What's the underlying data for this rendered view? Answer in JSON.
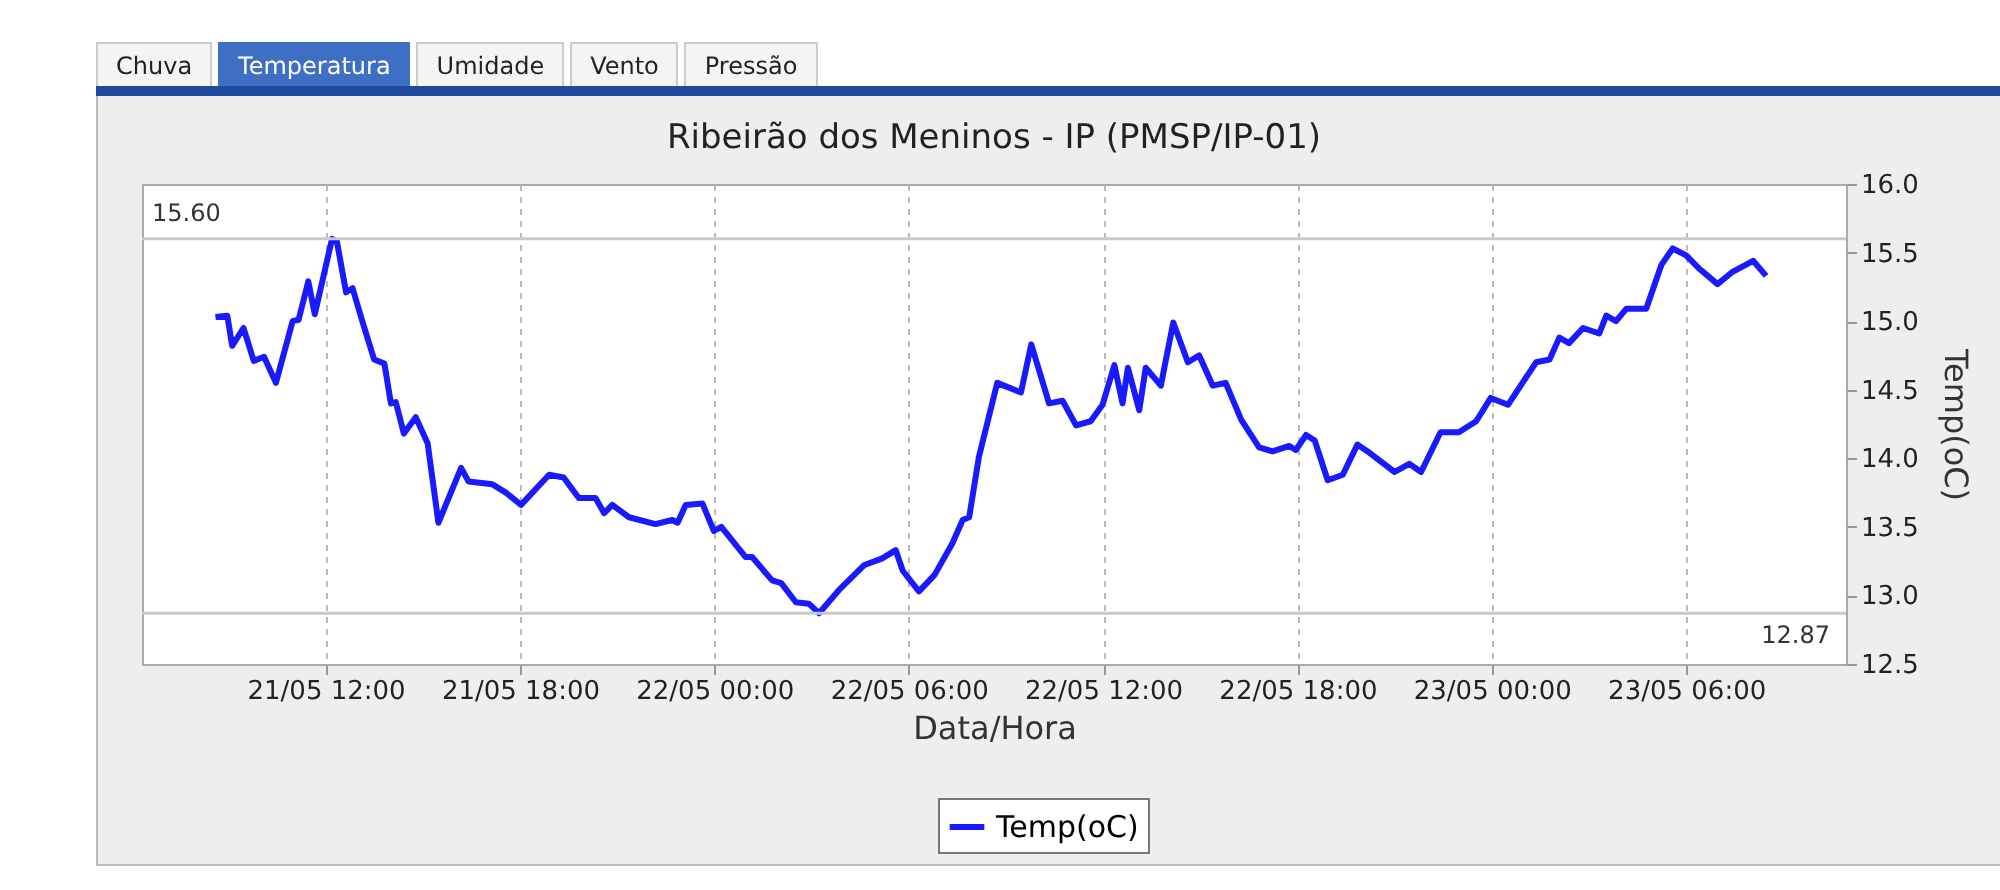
{
  "chart_data": {
    "type": "line",
    "title": "Ribeirão dos Meninos - IP (PMSP/IP-01)",
    "xlabel": "Data/Hora",
    "ylabel": "Temp(oC)",
    "annotations": [
      "Chuva",
      "Temperatura",
      "Umidade",
      "Vento",
      "Pressão"
    ],
    "xlim": [
      "--05-21T06:20",
      "--05-23T10:56"
    ],
    "xticks": [
      {
        "value": "--05-21T12:00",
        "label": "21/05 12:00"
      },
      {
        "value": "--05-21T18:00",
        "label": "21/05 18:00"
      },
      {
        "value": "--05-22T00:00",
        "label": "22/05 00:00"
      },
      {
        "value": "--05-22T06:00",
        "label": "22/05 06:00"
      },
      {
        "value": "--05-22T12:00",
        "label": "22/05 12:00"
      },
      {
        "value": "--05-22T18:00",
        "label": "22/05 18:00"
      },
      {
        "value": "--05-23T00:00",
        "label": "23/05 00:00"
      },
      {
        "value": "--05-23T06:00",
        "label": "23/05 06:00"
      }
    ],
    "ylim": [
      12.5,
      16.0
    ],
    "yticks": [
      {
        "value": 12.5,
        "label": "12.5"
      },
      {
        "value": 13,
        "label": "13.0"
      },
      {
        "value": 13.5,
        "label": "13.5"
      },
      {
        "value": 14,
        "label": "14.0"
      },
      {
        "value": 14.5,
        "label": "14.5"
      },
      {
        "value": 15,
        "label": "15.0"
      },
      {
        "value": 15.5,
        "label": "15.5"
      },
      {
        "value": 16,
        "label": "16.0"
      }
    ],
    "grid": "x",
    "legend": "bottom",
    "ref_lines": [
      {
        "axis": "y",
        "value": 15.6,
        "label": "15.60",
        "color": "#c8c8c8"
      },
      {
        "axis": "y",
        "value": 12.87,
        "label": "12.87",
        "color": "#c8c8c8"
      }
    ],
    "x": [
      "--05-21T08:36",
      "--05-21T08:58",
      "--05-21T09:07",
      "--05-21T09:28",
      "--05-21T09:47",
      "--05-21T10:06",
      "--05-21T10:28",
      "--05-21T10:59",
      "--05-21T11:10",
      "--05-21T11:28",
      "--05-21T11:40",
      "--05-21T12:12",
      "--05-21T12:21",
      "--05-21T12:38",
      "--05-21T12:50",
      "--05-21T13:08",
      "--05-21T13:30",
      "--05-21T13:49",
      "--05-21T14:01",
      "--05-21T14:10",
      "--05-21T14:25",
      "--05-21T14:47",
      "--05-21T15:09",
      "--05-21T15:29",
      "--05-21T16:11",
      "--05-21T16:25",
      "--05-21T17:09",
      "--05-21T17:34",
      "--05-21T18:02",
      "--05-21T18:54",
      "--05-21T19:21",
      "--05-21T19:49",
      "--05-21T20:20",
      "--05-21T20:36",
      "--05-21T20:51",
      "--05-21T21:22",
      "--05-21T22:11",
      "--05-21T22:42",
      "--05-21T22:52",
      "--05-21T23:07",
      "--05-21T23:38",
      "--05-21T23:59",
      "--05-22T00:13",
      "--05-22T00:58",
      "--05-22T01:10",
      "--05-22T01:47",
      "--05-22T02:04",
      "--05-22T02:31",
      "--05-22T02:55",
      "--05-22T03:14",
      "--05-22T03:51",
      "--05-22T04:37",
      "--05-22T05:11",
      "--05-22T05:36",
      "--05-22T05:49",
      "--05-22T06:19",
      "--05-22T06:48",
      "--05-22T07:21",
      "--05-22T07:40",
      "--05-22T07:52",
      "--05-22T08:10",
      "--05-22T08:44",
      "--05-22T09:28",
      "--05-22T09:47",
      "--05-22T10:20",
      "--05-22T10:45",
      "--05-22T11:10",
      "--05-22T11:37",
      "--05-22T11:59",
      "--05-22T12:21",
      "--05-22T12:36",
      "--05-22T12:46",
      "--05-22T13:07",
      "--05-22T13:19",
      "--05-22T13:47",
      "--05-22T14:10",
      "--05-22T14:37",
      "--05-22T14:58",
      "--05-22T15:23",
      "--05-22T15:47",
      "--05-22T16:16",
      "--05-22T16:49",
      "--05-22T17:14",
      "--05-22T17:45",
      "--05-22T17:57",
      "--05-22T18:16",
      "--05-22T18:32",
      "--05-22T18:56",
      "--05-22T19:24",
      "--05-22T19:51",
      "--05-22T20:10",
      "--05-22T21:00",
      "--05-22T21:27",
      "--05-22T21:49",
      "--05-22T22:25",
      "--05-22T22:59",
      "--05-22T23:31",
      "--05-22T23:58",
      "--05-23T00:30",
      "--05-23T01:22",
      "--05-23T01:47",
      "--05-23T02:05",
      "--05-23T02:23",
      "--05-23T02:49",
      "--05-23T03:19",
      "--05-23T03:32",
      "--05-23T03:50",
      "--05-23T04:09",
      "--05-23T04:46",
      "--05-23T05:14",
      "--05-23T05:35",
      "--05-23T06:00",
      "--05-23T06:25",
      "--05-23T06:58",
      "--05-23T07:26",
      "--05-23T08:04",
      "--05-23T08:28"
    ],
    "series": [
      {
        "name": "Temp(oC)",
        "color": "#1a1aff",
        "values": [
          15.03,
          15.04,
          14.82,
          14.95,
          14.71,
          14.74,
          14.55,
          15.0,
          15.01,
          15.29,
          15.05,
          15.6,
          15.58,
          15.21,
          15.24,
          15.0,
          14.72,
          14.69,
          14.4,
          14.41,
          14.18,
          14.3,
          14.11,
          13.53,
          13.93,
          13.83,
          13.81,
          13.75,
          13.66,
          13.88,
          13.86,
          13.71,
          13.71,
          13.6,
          13.66,
          13.57,
          13.52,
          13.55,
          13.53,
          13.66,
          13.67,
          13.47,
          13.5,
          13.28,
          13.28,
          13.11,
          13.09,
          12.95,
          12.94,
          12.87,
          13.04,
          13.22,
          13.27,
          13.33,
          13.18,
          13.03,
          13.15,
          13.38,
          13.55,
          13.57,
          14.01,
          14.55,
          14.48,
          14.83,
          14.4,
          14.42,
          14.24,
          14.27,
          14.39,
          14.68,
          14.4,
          14.66,
          14.35,
          14.66,
          14.53,
          14.99,
          14.7,
          14.75,
          14.53,
          14.55,
          14.28,
          14.08,
          14.05,
          14.09,
          14.06,
          14.17,
          14.13,
          13.84,
          13.88,
          14.1,
          14.05,
          13.9,
          13.96,
          13.9,
          14.19,
          14.19,
          14.27,
          14.44,
          14.39,
          14.7,
          14.72,
          14.88,
          14.84,
          14.95,
          14.91,
          15.04,
          15.0,
          15.09,
          15.09,
          15.41,
          15.53,
          15.48,
          15.38,
          15.27,
          15.36,
          15.44,
          15.33
        ]
      }
    ]
  }
}
